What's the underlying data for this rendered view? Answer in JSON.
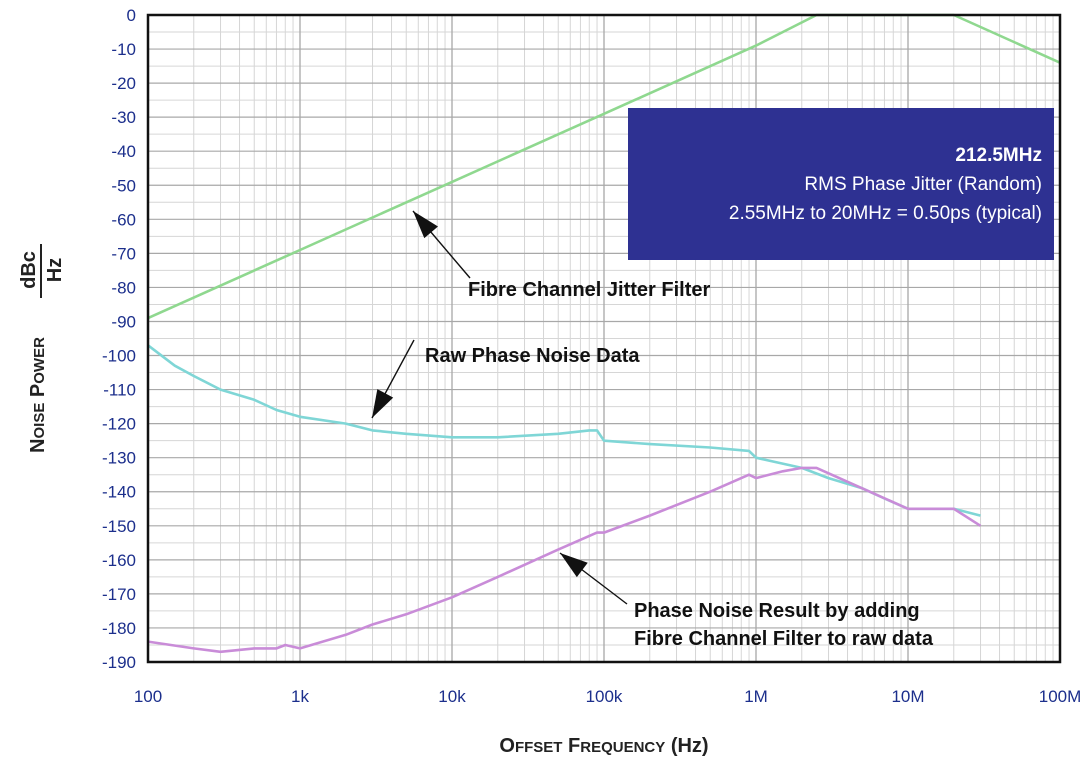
{
  "chart_data": {
    "type": "line",
    "title": "",
    "xlabel": "Offset Frequency (Hz)",
    "ylabel": {
      "prefix": "Noise Power",
      "numerator": "dBc",
      "denominator": "Hz"
    },
    "x_scale": "log",
    "xlim": [
      100,
      100000000
    ],
    "ylim": [
      -190,
      0
    ],
    "grid": true,
    "x_ticks": [
      {
        "value": 100,
        "label": "100"
      },
      {
        "value": 1000,
        "label": "1k"
      },
      {
        "value": 10000,
        "label": "10k"
      },
      {
        "value": 100000,
        "label": "100k"
      },
      {
        "value": 1000000,
        "label": "1M"
      },
      {
        "value": 10000000,
        "label": "10M"
      },
      {
        "value": 100000000,
        "label": "100M"
      }
    ],
    "y_ticks": [
      0,
      -10,
      -20,
      -30,
      -40,
      -50,
      -60,
      -70,
      -80,
      -90,
      -100,
      -110,
      -120,
      -130,
      -140,
      -150,
      -160,
      -170,
      -180,
      -190
    ],
    "series": [
      {
        "key": "filter",
        "color": "#8fd88f",
        "x": [
          100,
          1000,
          10000,
          100000,
          1000000,
          2500000,
          20000000,
          100000000
        ],
        "y": [
          -89,
          -69,
          -49,
          -29,
          -9,
          0,
          0,
          -14
        ]
      },
      {
        "key": "raw",
        "color": "#7fd6d6",
        "x": [
          100,
          150,
          200,
          300,
          500,
          700,
          1000,
          2000,
          3000,
          5000,
          10000,
          20000,
          50000,
          80000,
          90000,
          100000,
          200000,
          500000,
          900000,
          1000000,
          2000000,
          3000000,
          5000000,
          7000000,
          10000000,
          15000000,
          20000000,
          30000000
        ],
        "y": [
          -97,
          -103,
          -106,
          -110,
          -113,
          -116,
          -118,
          -120,
          -122,
          -123,
          -124,
          -124,
          -123,
          -122,
          -122,
          -125,
          -126,
          -127,
          -128,
          -130,
          -133,
          -136,
          -139,
          -142,
          -145,
          -145,
          -145,
          -147
        ]
      },
      {
        "key": "result",
        "color": "#c98cd8",
        "x": [
          100,
          200,
          300,
          500,
          700,
          800,
          1000,
          2000,
          3000,
          5000,
          10000,
          20000,
          50000,
          90000,
          100000,
          200000,
          500000,
          900000,
          1000000,
          1500000,
          2000000,
          2500000,
          5000000,
          10000000,
          20000000,
          30000000
        ],
        "y": [
          -184,
          -186,
          -187,
          -186,
          -186,
          -185,
          -186,
          -182,
          -179,
          -176,
          -171,
          -165,
          -157,
          -152,
          -152,
          -147,
          -140,
          -135,
          -136,
          -134,
          -133,
          -133,
          -139,
          -145,
          -145,
          -150
        ]
      }
    ]
  },
  "annotations": {
    "filter": "Fibre Channel Jitter Filter",
    "raw": "Raw Phase Noise Data",
    "result_line1": "Phase Noise Result by adding",
    "result_line2": "Fibre Channel Filter to raw data"
  },
  "infobox": {
    "frequency": "212.5MHz",
    "line1": "RMS Phase Jitter  (Random)",
    "line2": "2.55MHz to 20MHz = 0.50ps (typical)",
    "background": "#2e3192"
  },
  "colors": {
    "tick_text": "#1c2f8c",
    "grid_major": "#a8a8a8",
    "grid_minor": "#d6d6d6"
  }
}
